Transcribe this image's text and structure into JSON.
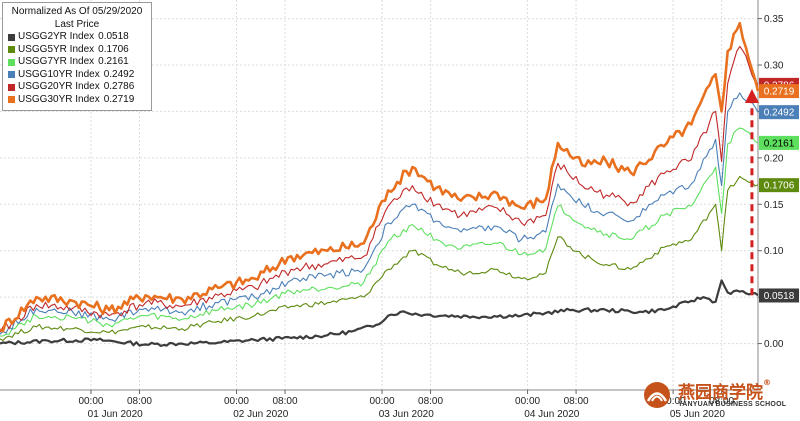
{
  "chart_data": {
    "type": "line",
    "legend_title": "Normalized As Of 05/29/2020",
    "legend_subtitle": "Last Price",
    "legend_placement": "top-left",
    "y_axis_side": "right",
    "ylim": [
      -0.05,
      0.37
    ],
    "yticks": [
      0.0,
      0.05,
      0.1,
      0.15,
      0.2,
      0.25,
      0.3,
      0.35
    ],
    "ytick_labels": [
      "0.00",
      "0.05",
      "0.10",
      "0.15",
      "0.20",
      "0.25",
      "0.30",
      "0.35"
    ],
    "xlim": [
      0,
      125
    ],
    "xticks": [
      {
        "t": 15,
        "time": "00:00",
        "day": "01 Jun 2020"
      },
      {
        "t": 23,
        "time": "08:00",
        "day": ""
      },
      {
        "t": 39,
        "time": "00:00",
        "day": "02 Jun 2020"
      },
      {
        "t": 47,
        "time": "08:00",
        "day": ""
      },
      {
        "t": 63,
        "time": "00:00",
        "day": "03 Jun 2020"
      },
      {
        "t": 71,
        "time": "08:00",
        "day": ""
      },
      {
        "t": 87,
        "time": "00:00",
        "day": "04 Jun 2020"
      },
      {
        "t": 95,
        "time": "08:00",
        "day": ""
      },
      {
        "t": 111,
        "time": "00:00",
        "day": "05 Jun 2020"
      },
      {
        "t": 119,
        "time": "08:00",
        "day": ""
      }
    ],
    "x_unit": "hours since 31 May 2020 09:00",
    "grid": true,
    "series": [
      {
        "name": "USGG2YR Index",
        "last": "0.0518",
        "color": "#3c3c3c",
        "points": [
          [
            0,
            0.0
          ],
          [
            8,
            0.003
          ],
          [
            16,
            0.004
          ],
          [
            24,
            -0.001
          ],
          [
            30,
            0.0
          ],
          [
            36,
            0.001
          ],
          [
            42,
            0.004
          ],
          [
            48,
            0.006
          ],
          [
            54,
            0.009
          ],
          [
            58,
            0.013
          ],
          [
            62,
            0.02
          ],
          [
            64,
            0.03
          ],
          [
            66,
            0.034
          ],
          [
            70,
            0.031
          ],
          [
            78,
            0.029
          ],
          [
            86,
            0.03
          ],
          [
            90,
            0.033
          ],
          [
            94,
            0.036
          ],
          [
            100,
            0.036
          ],
          [
            106,
            0.034
          ],
          [
            110,
            0.037
          ],
          [
            114,
            0.046
          ],
          [
            116,
            0.05
          ],
          [
            118,
            0.045
          ],
          [
            119,
            0.068
          ],
          [
            120,
            0.055
          ],
          [
            122,
            0.056
          ],
          [
            125,
            0.052
          ]
        ]
      },
      {
        "name": "USGG5YR Index",
        "last": "0.1706",
        "color": "#5e8a0e",
        "points": [
          [
            0,
            0.005
          ],
          [
            6,
            0.018
          ],
          [
            12,
            0.016
          ],
          [
            18,
            0.012
          ],
          [
            24,
            0.018
          ],
          [
            30,
            0.016
          ],
          [
            36,
            0.024
          ],
          [
            42,
            0.03
          ],
          [
            48,
            0.04
          ],
          [
            54,
            0.044
          ],
          [
            60,
            0.05
          ],
          [
            64,
            0.08
          ],
          [
            68,
            0.1
          ],
          [
            72,
            0.085
          ],
          [
            76,
            0.076
          ],
          [
            82,
            0.08
          ],
          [
            86,
            0.07
          ],
          [
            90,
            0.076
          ],
          [
            92,
            0.115
          ],
          [
            96,
            0.095
          ],
          [
            100,
            0.085
          ],
          [
            104,
            0.08
          ],
          [
            110,
            0.105
          ],
          [
            114,
            0.112
          ],
          [
            118,
            0.15
          ],
          [
            119,
            0.1
          ],
          [
            120,
            0.165
          ],
          [
            122,
            0.18
          ],
          [
            125,
            0.171
          ]
        ]
      },
      {
        "name": "USGG7YR Index",
        "last": "0.2161",
        "color": "#5ee05e",
        "points": [
          [
            0,
            0.008
          ],
          [
            6,
            0.03
          ],
          [
            12,
            0.028
          ],
          [
            18,
            0.02
          ],
          [
            24,
            0.03
          ],
          [
            30,
            0.026
          ],
          [
            36,
            0.036
          ],
          [
            42,
            0.042
          ],
          [
            48,
            0.056
          ],
          [
            54,
            0.06
          ],
          [
            60,
            0.066
          ],
          [
            64,
            0.11
          ],
          [
            68,
            0.128
          ],
          [
            72,
            0.112
          ],
          [
            76,
            0.102
          ],
          [
            82,
            0.108
          ],
          [
            86,
            0.096
          ],
          [
            90,
            0.102
          ],
          [
            92,
            0.148
          ],
          [
            96,
            0.128
          ],
          [
            100,
            0.118
          ],
          [
            104,
            0.112
          ],
          [
            110,
            0.14
          ],
          [
            114,
            0.148
          ],
          [
            118,
            0.19
          ],
          [
            119,
            0.14
          ],
          [
            120,
            0.215
          ],
          [
            122,
            0.232
          ],
          [
            125,
            0.216
          ]
        ]
      },
      {
        "name": "USGG10YR Index",
        "last": "0.2492",
        "color": "#4a7fb8",
        "points": [
          [
            0,
            0.01
          ],
          [
            6,
            0.038
          ],
          [
            12,
            0.034
          ],
          [
            18,
            0.026
          ],
          [
            24,
            0.038
          ],
          [
            30,
            0.034
          ],
          [
            36,
            0.044
          ],
          [
            42,
            0.05
          ],
          [
            48,
            0.068
          ],
          [
            54,
            0.074
          ],
          [
            60,
            0.08
          ],
          [
            64,
            0.13
          ],
          [
            68,
            0.15
          ],
          [
            72,
            0.132
          ],
          [
            76,
            0.12
          ],
          [
            82,
            0.126
          ],
          [
            86,
            0.112
          ],
          [
            90,
            0.12
          ],
          [
            92,
            0.172
          ],
          [
            96,
            0.15
          ],
          [
            100,
            0.14
          ],
          [
            104,
            0.132
          ],
          [
            110,
            0.162
          ],
          [
            114,
            0.172
          ],
          [
            118,
            0.22
          ],
          [
            119,
            0.17
          ],
          [
            120,
            0.25
          ],
          [
            122,
            0.27
          ],
          [
            125,
            0.249
          ]
        ]
      },
      {
        "name": "USGG20YR Index",
        "last": "0.2786",
        "color": "#c02828",
        "points": [
          [
            0,
            0.012
          ],
          [
            6,
            0.042
          ],
          [
            12,
            0.038
          ],
          [
            18,
            0.03
          ],
          [
            24,
            0.044
          ],
          [
            30,
            0.04
          ],
          [
            36,
            0.052
          ],
          [
            42,
            0.06
          ],
          [
            48,
            0.08
          ],
          [
            54,
            0.086
          ],
          [
            60,
            0.094
          ],
          [
            64,
            0.148
          ],
          [
            68,
            0.17
          ],
          [
            72,
            0.15
          ],
          [
            76,
            0.138
          ],
          [
            82,
            0.146
          ],
          [
            86,
            0.13
          ],
          [
            90,
            0.138
          ],
          [
            92,
            0.194
          ],
          [
            96,
            0.17
          ],
          [
            100,
            0.16
          ],
          [
            104,
            0.152
          ],
          [
            110,
            0.186
          ],
          [
            114,
            0.198
          ],
          [
            118,
            0.25
          ],
          [
            119,
            0.196
          ],
          [
            120,
            0.28
          ],
          [
            122,
            0.32
          ],
          [
            125,
            0.279
          ]
        ]
      },
      {
        "name": "USGG30YR Index",
        "last": "0.2719",
        "color": "#e8701e",
        "points": [
          [
            0,
            0.015
          ],
          [
            6,
            0.05
          ],
          [
            12,
            0.046
          ],
          [
            18,
            0.036
          ],
          [
            24,
            0.052
          ],
          [
            30,
            0.048
          ],
          [
            36,
            0.06
          ],
          [
            42,
            0.07
          ],
          [
            48,
            0.094
          ],
          [
            54,
            0.1
          ],
          [
            60,
            0.108
          ],
          [
            64,
            0.165
          ],
          [
            68,
            0.19
          ],
          [
            72,
            0.168
          ],
          [
            76,
            0.154
          ],
          [
            82,
            0.162
          ],
          [
            86,
            0.146
          ],
          [
            90,
            0.156
          ],
          [
            92,
            0.216
          ],
          [
            96,
            0.192
          ],
          [
            100,
            0.196
          ],
          [
            104,
            0.184
          ],
          [
            110,
            0.216
          ],
          [
            114,
            0.236
          ],
          [
            118,
            0.29
          ],
          [
            119,
            0.25
          ],
          [
            120,
            0.315
          ],
          [
            122,
            0.345
          ],
          [
            125,
            0.272
          ]
        ]
      }
    ],
    "annotation": {
      "type": "arrow",
      "style": "dashed",
      "color": "#d42020",
      "t": 124,
      "from_y": 0.052,
      "to_y": 0.272
    }
  },
  "watermark": {
    "cn": "燕园商学院",
    "en": "YANYUAN BUSINESS SCHOOL",
    "registered": "®"
  }
}
